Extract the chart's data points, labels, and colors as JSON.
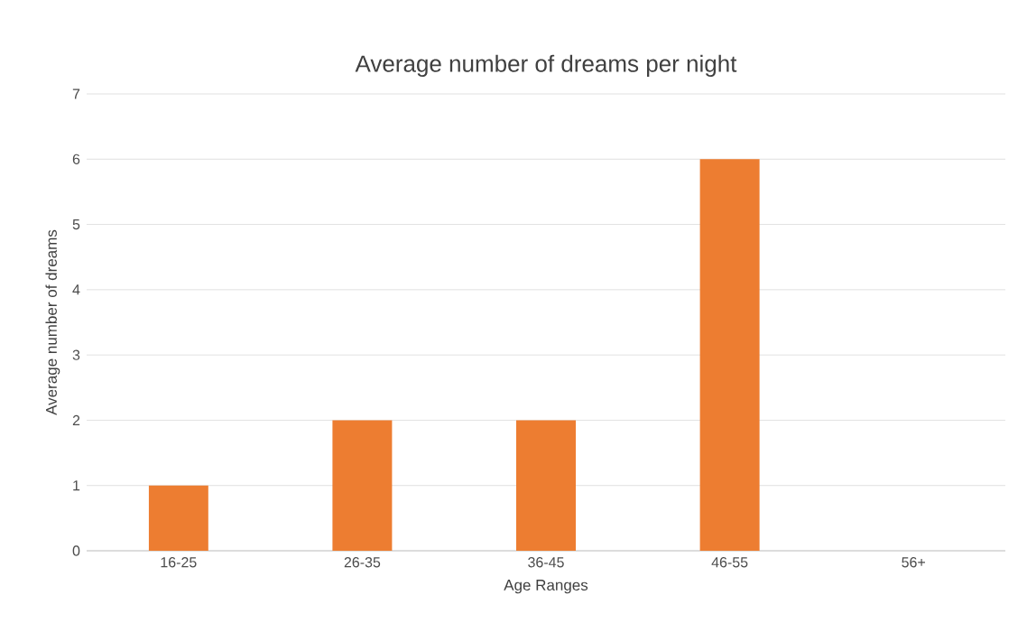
{
  "chart_data": {
    "type": "bar",
    "title": "Average number of dreams per night",
    "xlabel": "Age Ranges",
    "ylabel": "Average number of dreams",
    "categories": [
      "16-25",
      "26-35",
      "36-45",
      "46-55",
      "56+"
    ],
    "values": [
      1,
      2,
      2,
      6,
      0
    ],
    "color": "#ed7d31",
    "ylim": [
      0,
      7
    ],
    "yticks": [
      0,
      1,
      2,
      3,
      4,
      5,
      6,
      7
    ],
    "grid": "y"
  }
}
